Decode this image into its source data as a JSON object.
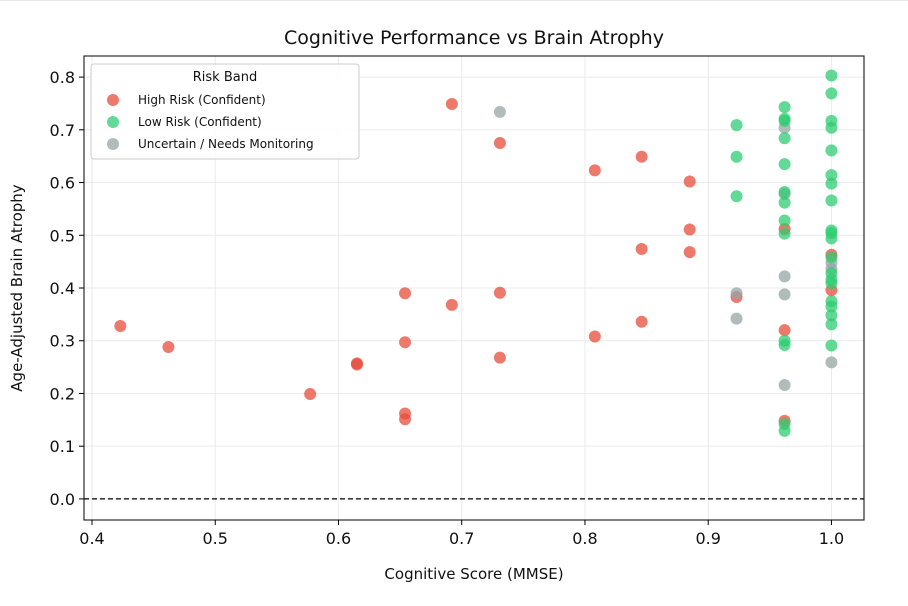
{
  "chart_data": {
    "type": "scatter",
    "title": "Cognitive Performance vs Brain Atrophy",
    "xlabel": "Cognitive Score (MMSE)",
    "ylabel": "Age-Adjusted Brain Atrophy",
    "xlim": [
      0.4,
      1.0
    ],
    "ylim": [
      -0.04,
      0.84
    ],
    "xticks": [
      0.4,
      0.5,
      0.6,
      0.7,
      0.8,
      0.9,
      1.0
    ],
    "xtick_labels": [
      "0.4",
      "0.5",
      "0.6",
      "0.7",
      "0.8",
      "0.9",
      "1.0"
    ],
    "yticks": [
      0.0,
      0.1,
      0.2,
      0.3,
      0.4,
      0.5,
      0.6,
      0.7,
      0.8
    ],
    "ytick_labels": [
      "0.0",
      "0.1",
      "0.2",
      "0.3",
      "0.4",
      "0.5",
      "0.6",
      "0.7",
      "0.8"
    ],
    "grid": true,
    "reference_line": {
      "y": 0.0,
      "style": "dashed",
      "color": "#000000"
    },
    "legend": {
      "title": "Risk Band",
      "placement": "top-left"
    },
    "series": [
      {
        "name": "High Risk (Confident)",
        "color": "#e74c3c",
        "points": [
          [
            0.423,
            0.328
          ],
          [
            0.462,
            0.288
          ],
          [
            0.577,
            0.199
          ],
          [
            0.615,
            0.255
          ],
          [
            0.615,
            0.257
          ],
          [
            0.654,
            0.39
          ],
          [
            0.654,
            0.297
          ],
          [
            0.654,
            0.162
          ],
          [
            0.654,
            0.151
          ],
          [
            0.692,
            0.749
          ],
          [
            0.692,
            0.368
          ],
          [
            0.731,
            0.675
          ],
          [
            0.731,
            0.391
          ],
          [
            0.731,
            0.268
          ],
          [
            0.808,
            0.623
          ],
          [
            0.808,
            0.308
          ],
          [
            0.846,
            0.649
          ],
          [
            0.846,
            0.474
          ],
          [
            0.846,
            0.336
          ],
          [
            0.885,
            0.602
          ],
          [
            0.885,
            0.511
          ],
          [
            0.885,
            0.468
          ],
          [
            0.923,
            0.383
          ],
          [
            0.962,
            0.512
          ],
          [
            0.962,
            0.32
          ],
          [
            0.962,
            0.148
          ],
          [
            1.0,
            0.463
          ],
          [
            1.0,
            0.396
          ]
        ]
      },
      {
        "name": "Low Risk (Confident)",
        "color": "#2ecc71",
        "points": [
          [
            0.923,
            0.709
          ],
          [
            0.923,
            0.649
          ],
          [
            0.923,
            0.574
          ],
          [
            0.962,
            0.743
          ],
          [
            0.962,
            0.721
          ],
          [
            0.962,
            0.717
          ],
          [
            0.962,
            0.684
          ],
          [
            0.962,
            0.635
          ],
          [
            0.962,
            0.582
          ],
          [
            0.962,
            0.562
          ],
          [
            0.962,
            0.528
          ],
          [
            0.962,
            0.503
          ],
          [
            0.962,
            0.3
          ],
          [
            0.962,
            0.292
          ],
          [
            0.962,
            0.142
          ],
          [
            0.962,
            0.129
          ],
          [
            1.0,
            0.803
          ],
          [
            1.0,
            0.769
          ],
          [
            1.0,
            0.717
          ],
          [
            1.0,
            0.704
          ],
          [
            1.0,
            0.661
          ],
          [
            1.0,
            0.614
          ],
          [
            1.0,
            0.598
          ],
          [
            1.0,
            0.566
          ],
          [
            1.0,
            0.509
          ],
          [
            1.0,
            0.504
          ],
          [
            1.0,
            0.494
          ],
          [
            1.0,
            0.458
          ],
          [
            1.0,
            0.428
          ],
          [
            1.0,
            0.416
          ],
          [
            1.0,
            0.409
          ],
          [
            1.0,
            0.375
          ],
          [
            1.0,
            0.365
          ],
          [
            1.0,
            0.348
          ],
          [
            1.0,
            0.331
          ],
          [
            1.0,
            0.291
          ]
        ]
      },
      {
        "name": "Uncertain / Needs Monitoring",
        "color": "#95a5a6",
        "points": [
          [
            0.731,
            0.734
          ],
          [
            0.923,
            0.39
          ],
          [
            0.923,
            0.342
          ],
          [
            0.962,
            0.704
          ],
          [
            0.962,
            0.578
          ],
          [
            0.962,
            0.422
          ],
          [
            0.962,
            0.388
          ],
          [
            0.962,
            0.216
          ],
          [
            1.0,
            0.448
          ],
          [
            1.0,
            0.436
          ],
          [
            1.0,
            0.259
          ]
        ]
      }
    ]
  }
}
